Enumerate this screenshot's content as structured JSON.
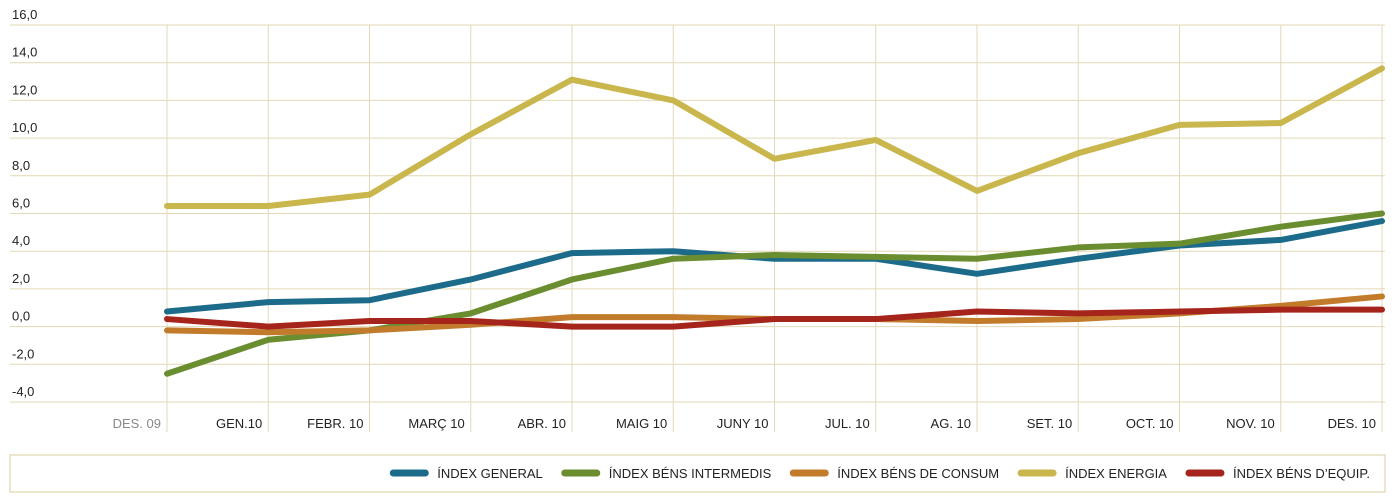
{
  "chart_data": {
    "type": "line",
    "categories": [
      "DES. 09",
      "GEN.10",
      "FEBR. 10",
      "MARÇ 10",
      "ABR. 10",
      "MAIG 10",
      "JUNY 10",
      "JUL. 10",
      "AG. 10",
      "SET. 10",
      "OCT. 10",
      "NOV. 10",
      "DES. 10"
    ],
    "ylim": [
      -4,
      16
    ],
    "yticks": [
      {
        "value": -4,
        "label": "-4,0"
      },
      {
        "value": -2,
        "label": "-2,0"
      },
      {
        "value": 0,
        "label": "0,0"
      },
      {
        "value": 2,
        "label": "2,0"
      },
      {
        "value": 4,
        "label": "4,0"
      },
      {
        "value": 6,
        "label": "6,0"
      },
      {
        "value": 8,
        "label": "8,0"
      },
      {
        "value": 10,
        "label": "10,0"
      },
      {
        "value": 12,
        "label": "12,0"
      },
      {
        "value": 14,
        "label": "14,0"
      },
      {
        "value": 16,
        "label": "16,0"
      }
    ],
    "grid": true,
    "legend": "bottom",
    "series": [
      {
        "name": "ÍNDEX GENERAL",
        "color": "#1d6b8a",
        "values": [
          0.8,
          1.3,
          1.4,
          2.5,
          3.9,
          4.0,
          3.6,
          3.6,
          2.8,
          3.6,
          4.3,
          4.6,
          5.6
        ]
      },
      {
        "name": "ÍNDEX BÉNS INTERMEDIS",
        "color": "#6a8d2f",
        "values": [
          -2.5,
          -0.7,
          -0.2,
          0.7,
          2.5,
          3.6,
          3.8,
          3.7,
          3.6,
          4.2,
          4.4,
          5.3,
          6.0
        ]
      },
      {
        "name": "ÍNDEX BÉNS DE CONSUM",
        "color": "#c27b2b",
        "values": [
          -0.2,
          -0.3,
          -0.2,
          0.1,
          0.5,
          0.5,
          0.4,
          0.4,
          0.3,
          0.4,
          0.7,
          1.1,
          1.6
        ]
      },
      {
        "name": "ÍNDEX ENERGIA",
        "color": "#c9b64c",
        "values": [
          6.4,
          6.4,
          7.0,
          10.2,
          13.1,
          12.0,
          8.9,
          9.9,
          7.2,
          9.2,
          10.7,
          10.8,
          13.7
        ]
      },
      {
        "name": "ÍNDEX BÉNS D’EQUIP.",
        "color": "#a5241b",
        "values": [
          0.4,
          0.0,
          0.3,
          0.3,
          0.0,
          0.0,
          0.4,
          0.4,
          0.8,
          0.7,
          0.8,
          0.9,
          0.9
        ]
      }
    ]
  }
}
